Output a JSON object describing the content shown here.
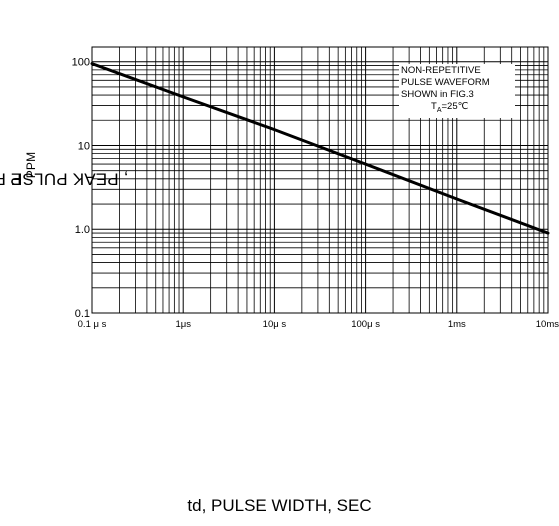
{
  "chart_data": {
    "type": "line",
    "title": "",
    "xlabel": "td, PULSE WIDTH, SEC",
    "ylabel_main": "P",
    "ylabel_sub": "PPM",
    "ylabel_rest": ", PEAK PULSE POWER, KW",
    "x_scale": "log",
    "y_scale": "log",
    "x_tick_values": [
      1e-07,
      1e-06,
      1e-05,
      0.0001,
      0.001,
      0.01
    ],
    "x_tick_labels": [
      "0.1 μ s",
      "1μs",
      "10μ s",
      "100μ s",
      "1ms",
      "10ms"
    ],
    "y_tick_values": [
      0.1,
      1,
      10,
      100
    ],
    "y_tick_labels": [
      "0.1",
      "1.0",
      "10",
      "100"
    ],
    "xlim": [
      1e-07,
      0.01
    ],
    "ylim": [
      0.1,
      150
    ],
    "grid": true,
    "legend": "none",
    "annotation": [
      "NON-REPETITIVE",
      "PULSE WAVEFORM",
      "SHOWN in FIG.3"
    ],
    "annotation_condition_main": "T",
    "annotation_condition_sub": "A",
    "annotation_condition_rest": "=25℃",
    "series": [
      {
        "x": [
          1e-07,
          1e-06,
          1e-05,
          0.0001,
          0.001,
          0.01
        ],
        "y": [
          95,
          38,
          15.5,
          6,
          2.3,
          0.9
        ]
      }
    ],
    "line_color": "#000000"
  }
}
